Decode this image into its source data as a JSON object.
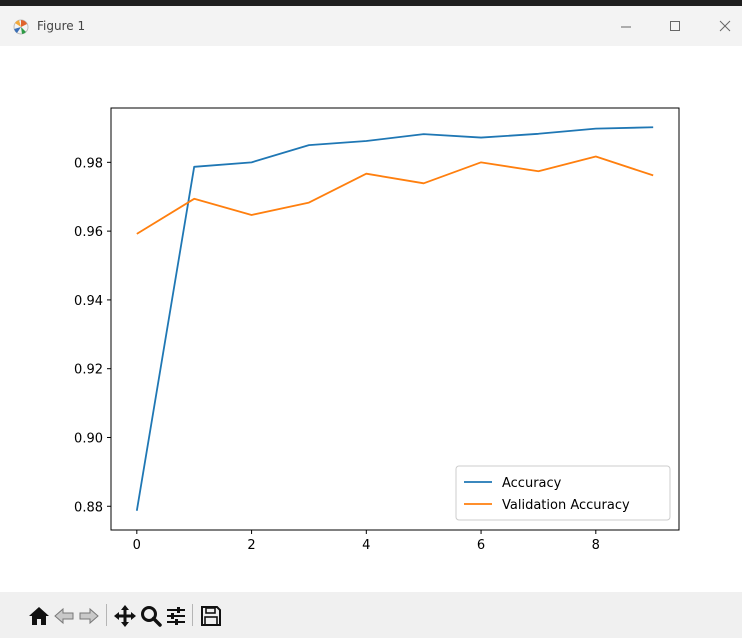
{
  "window": {
    "title": "Figure 1"
  },
  "toolbar": {
    "buttons": [
      "home-icon",
      "back-arrow-icon",
      "forward-arrow-icon",
      "pan-icon",
      "zoom-icon",
      "configure-subplots-icon",
      "save-icon"
    ]
  },
  "chart_data": {
    "type": "line",
    "x": [
      0,
      1,
      2,
      3,
      4,
      5,
      6,
      7,
      8,
      9
    ],
    "series": [
      {
        "name": "Accuracy",
        "color": "#1f77b4",
        "values": [
          0.8787,
          0.9787,
          0.98,
          0.985,
          0.9862,
          0.9882,
          0.9872,
          0.9883,
          0.9898,
          0.9902
        ]
      },
      {
        "name": "Validation Accuracy",
        "color": "#ff7f0e",
        "values": [
          0.9592,
          0.9694,
          0.9647,
          0.9683,
          0.9767,
          0.9739,
          0.98,
          0.9774,
          0.9817,
          0.9762
        ]
      }
    ],
    "xlim": [
      -0.45,
      9.45
    ],
    "ylim": [
      0.8731,
      0.9958
    ],
    "xticks": [
      0,
      2,
      4,
      6,
      8
    ],
    "yticks": [
      0.88,
      0.9,
      0.92,
      0.94,
      0.96,
      0.98
    ],
    "xtick_labels": [
      "0",
      "2",
      "4",
      "6",
      "8"
    ],
    "ytick_labels": [
      "0.88",
      "0.90",
      "0.92",
      "0.94",
      "0.96",
      "0.98"
    ],
    "title": "",
    "xlabel": "",
    "ylabel": "",
    "grid": false,
    "legend": "lower right"
  }
}
